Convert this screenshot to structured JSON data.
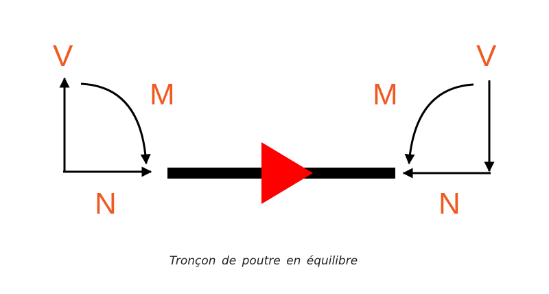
{
  "labels": {
    "left_v": "V",
    "left_m": "M",
    "left_n": "N",
    "right_v": "V",
    "right_m": "M",
    "right_n": "N"
  },
  "caption": "Tronçon de poutre en équilibre",
  "colors": {
    "label": "#f05a22",
    "arrow": "#000000",
    "beam": "#000000",
    "triangle": "#ff0000"
  }
}
